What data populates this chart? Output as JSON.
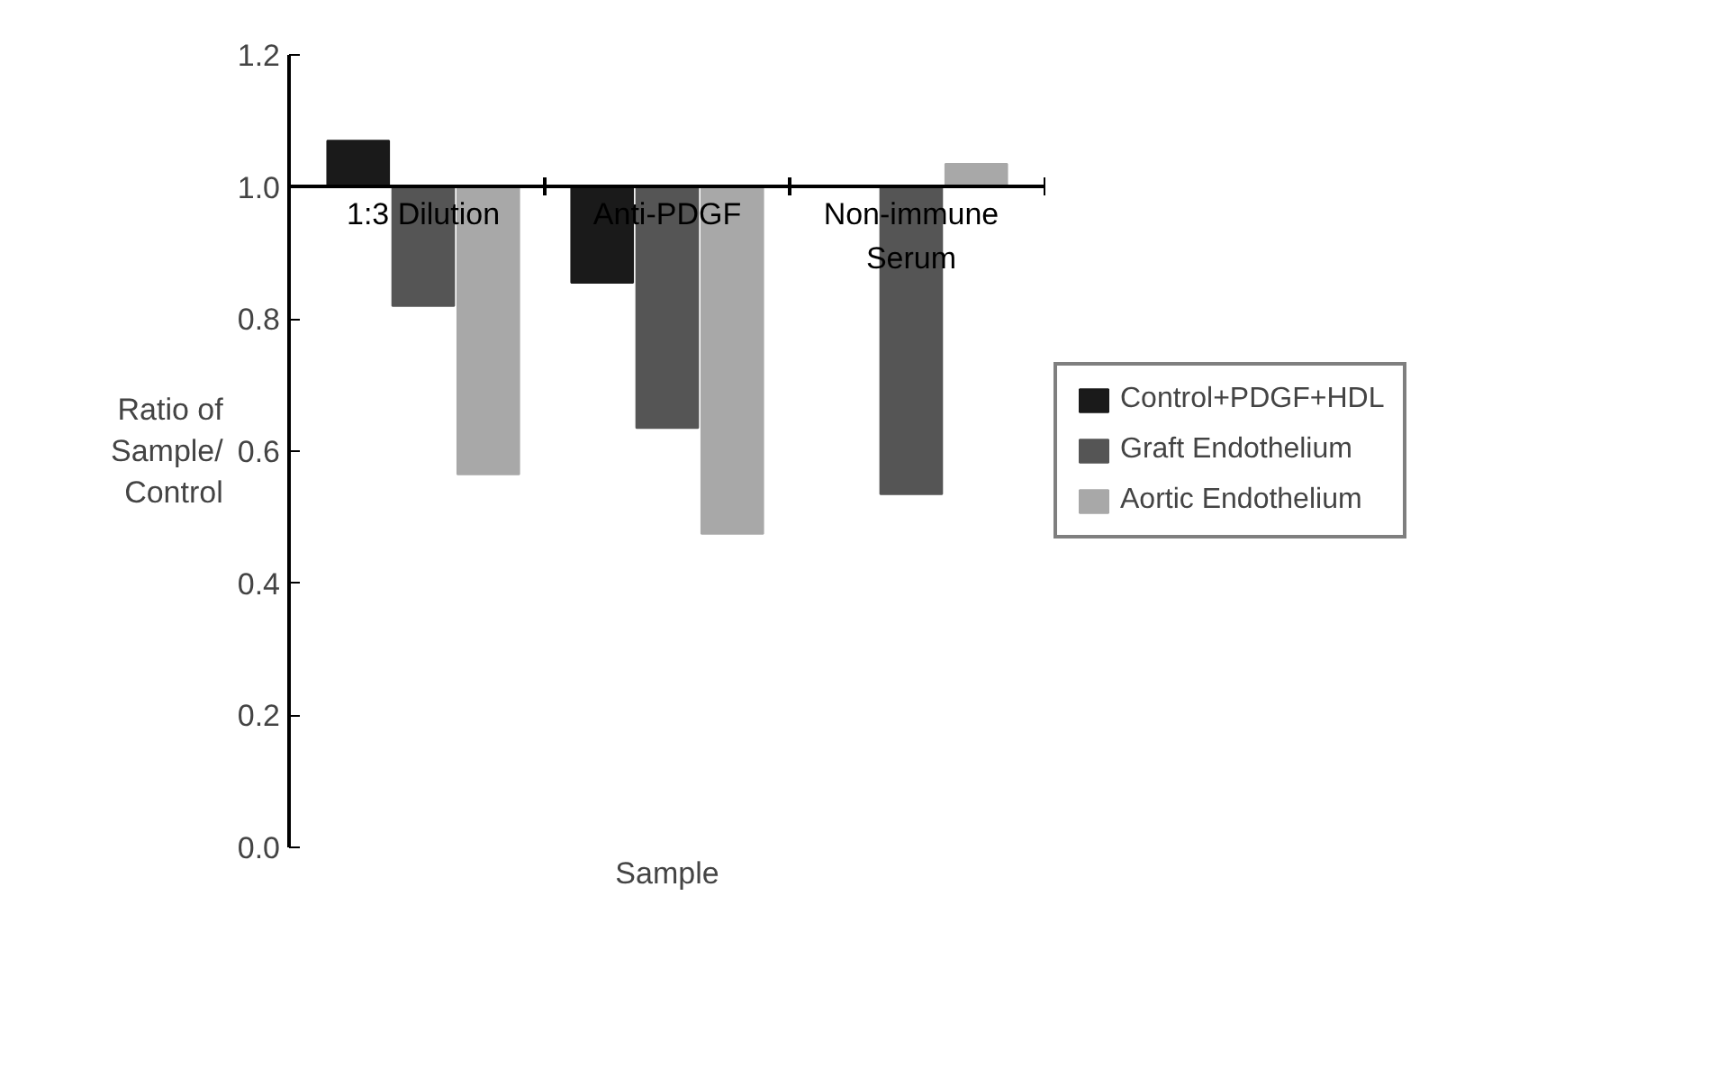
{
  "chart_data": {
    "type": "bar",
    "xlabel": "Sample",
    "ylabel": "Ratio of Sample/ Control",
    "categories": [
      "1:3 Dilution",
      "Anti-PDGF",
      "Non-immune Serum"
    ],
    "series": [
      {
        "name": "Control+PDGF+HDL",
        "color": "#1a1a1a",
        "values": [
          0.07,
          -0.145,
          null
        ],
        "base": [
          1.0,
          1.0,
          null
        ]
      },
      {
        "name": "Graft Endothelium",
        "color": "#555555",
        "values": [
          -0.18,
          -0.365,
          -0.465
        ],
        "base": [
          1.0,
          1.0,
          1.0
        ]
      },
      {
        "name": "Aortic Endothelium",
        "color": "#a8a8a8",
        "values": [
          -0.435,
          -0.525,
          0.035
        ],
        "base": [
          1.0,
          1.0,
          1.0
        ]
      }
    ],
    "ylim": [
      0,
      1.2
    ],
    "yticks": [
      {
        "value": 0,
        "label": "0.0"
      },
      {
        "value": 0.2,
        "label": "0.2"
      },
      {
        "value": 0.4,
        "label": "0.4"
      },
      {
        "value": 0.6,
        "label": "0.6"
      },
      {
        "value": 0.8,
        "label": "0.8"
      },
      {
        "value": 1.0,
        "label": "1.0"
      },
      {
        "value": 1.2,
        "label": "1.2"
      }
    ],
    "tick_labels": "y",
    "grid": false,
    "legend": "right"
  }
}
